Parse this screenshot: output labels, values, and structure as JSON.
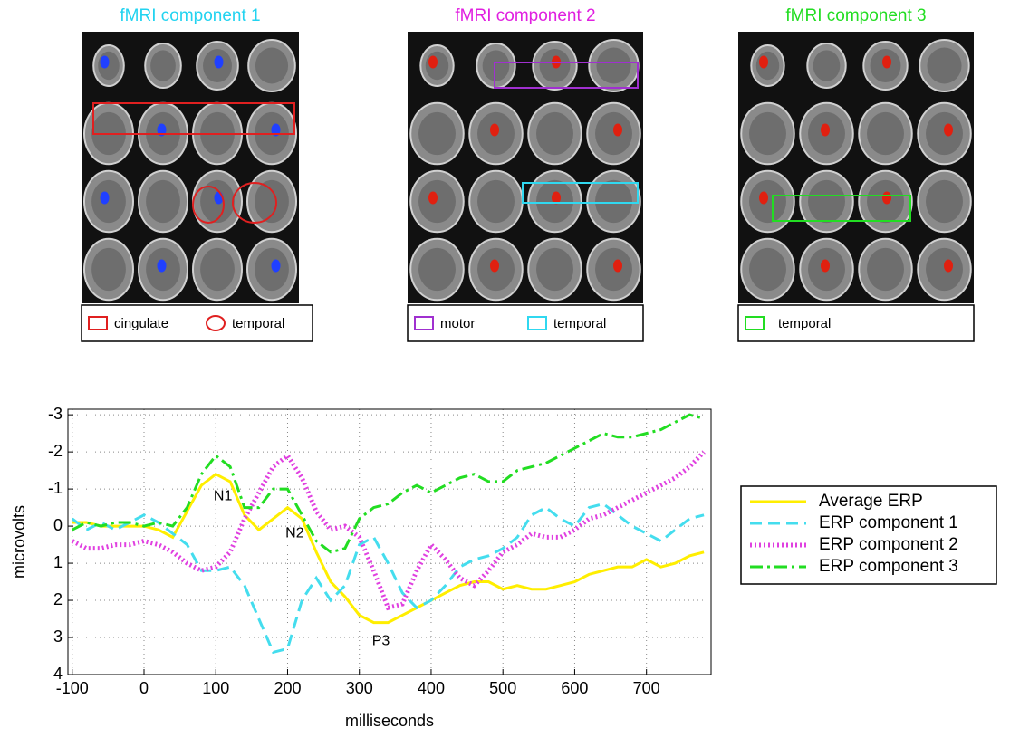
{
  "panels": [
    {
      "title": "fMRI component 1",
      "legend": [
        "cingulate",
        "temporal"
      ]
    },
    {
      "title": "fMRI component 2",
      "legend": [
        "motor",
        "temporal"
      ]
    },
    {
      "title": "fMRI component 3",
      "legend": [
        "temporal"
      ]
    }
  ],
  "chart_data": {
    "type": "line",
    "xlabel": "milliseconds",
    "ylabel": "microvolts",
    "x": [
      -100,
      -80,
      -60,
      -40,
      -20,
      0,
      20,
      40,
      60,
      80,
      100,
      120,
      140,
      160,
      180,
      200,
      220,
      240,
      260,
      280,
      300,
      320,
      340,
      360,
      380,
      400,
      420,
      440,
      460,
      480,
      500,
      520,
      540,
      560,
      580,
      600,
      620,
      640,
      660,
      680,
      700,
      720,
      740,
      760,
      780
    ],
    "series": [
      {
        "name": "Average ERP",
        "color": "#ffee00",
        "style": "solid",
        "values": [
          -0.1,
          -0.1,
          0,
          0,
          0,
          0,
          0.1,
          0.3,
          -0.4,
          -1.1,
          -1.4,
          -1.2,
          -0.3,
          0.1,
          -0.2,
          -0.5,
          -0.2,
          0.7,
          1.5,
          1.9,
          2.4,
          2.6,
          2.6,
          2.4,
          2.2,
          2.0,
          1.8,
          1.6,
          1.5,
          1.5,
          1.7,
          1.6,
          1.7,
          1.7,
          1.6,
          1.5,
          1.3,
          1.2,
          1.1,
          1.1,
          0.9,
          1.1,
          1.0,
          0.8,
          0.7
        ]
      },
      {
        "name": "ERP component 1",
        "color": "#44ddee",
        "style": "dashed",
        "values": [
          -0.2,
          0.1,
          -0.1,
          0.1,
          -0.1,
          -0.3,
          -0.1,
          0.2,
          0.5,
          1.2,
          1.2,
          1.1,
          1.6,
          2.5,
          3.4,
          3.3,
          2.0,
          1.4,
          2.0,
          1.6,
          0.5,
          0.3,
          1.0,
          1.8,
          2.2,
          2.0,
          1.6,
          1.1,
          0.9,
          0.8,
          0.6,
          0.3,
          -0.3,
          -0.5,
          -0.2,
          0.0,
          -0.5,
          -0.6,
          -0.3,
          0.0,
          0.2,
          0.4,
          0.1,
          -0.2,
          -0.3
        ]
      },
      {
        "name": "ERP component 2",
        "color": "#e040e0",
        "style": "dotted",
        "values": [
          0.4,
          0.6,
          0.6,
          0.5,
          0.5,
          0.4,
          0.5,
          0.7,
          1.0,
          1.2,
          1.1,
          0.7,
          -0.2,
          -0.9,
          -1.6,
          -1.9,
          -1.3,
          -0.4,
          0.1,
          0.0,
          0.3,
          1.2,
          2.2,
          2.1,
          1.2,
          0.5,
          0.9,
          1.4,
          1.6,
          1.2,
          0.7,
          0.5,
          0.2,
          0.3,
          0.3,
          0.1,
          -0.2,
          -0.3,
          -0.5,
          -0.7,
          -0.9,
          -1.1,
          -1.3,
          -1.6,
          -2.0
        ]
      },
      {
        "name": "ERP component 3",
        "color": "#22dd22",
        "style": "dashdot",
        "values": [
          0.1,
          -0.1,
          0.0,
          -0.1,
          -0.1,
          0.0,
          -0.1,
          0.0,
          -0.5,
          -1.4,
          -1.9,
          -1.6,
          -0.5,
          -0.5,
          -1.0,
          -1.0,
          -0.3,
          0.4,
          0.7,
          0.6,
          -0.2,
          -0.5,
          -0.6,
          -0.9,
          -1.1,
          -0.9,
          -1.1,
          -1.3,
          -1.4,
          -1.2,
          -1.2,
          -1.5,
          -1.6,
          -1.7,
          -1.9,
          -2.1,
          -2.3,
          -2.5,
          -2.4,
          -2.4,
          -2.5,
          -2.6,
          -2.8,
          -3.0,
          -2.9
        ]
      }
    ],
    "annotations": [
      {
        "text": "N1",
        "x": 110,
        "y": -0.8
      },
      {
        "text": "N2",
        "x": 210,
        "y": 0.2
      },
      {
        "text": "P3",
        "x": 330,
        "y": 3.1
      }
    ],
    "xlim": [
      -106,
      790
    ],
    "xticks": [
      -100,
      0,
      100,
      200,
      300,
      400,
      500,
      600,
      700
    ],
    "ylim": [
      -3.15,
      4
    ],
    "yticks": [
      -3,
      -2,
      -1,
      0,
      1,
      2,
      3,
      4
    ],
    "yreverse": true,
    "grid": true,
    "legend": "outside-right"
  }
}
